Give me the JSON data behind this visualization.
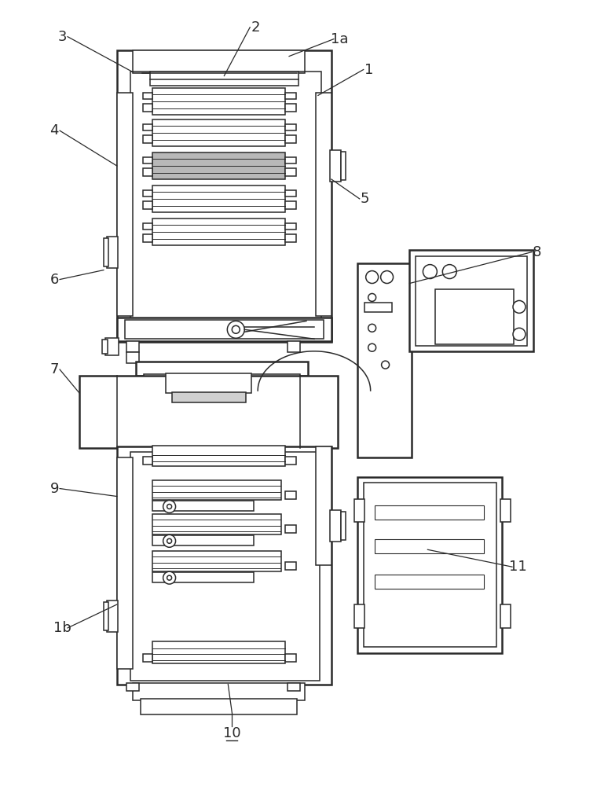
{
  "bg_color": "#ffffff",
  "lc": "#2a2a2a",
  "gray_fill": "#b8b8b8",
  "light_gray": "#d0d0d0",
  "fig_width": 7.6,
  "fig_height": 10.0,
  "lw": 1.1,
  "lw2": 1.8
}
